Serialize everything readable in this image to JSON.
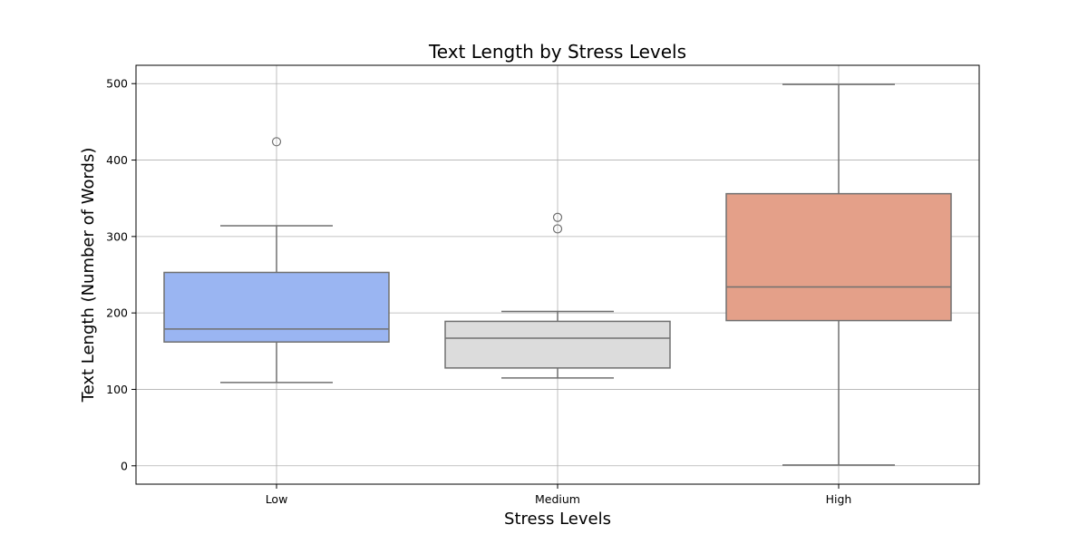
{
  "chart_data": {
    "type": "box",
    "title": "Text Length by Stress Levels",
    "xlabel": "Stress Levels",
    "ylabel": "Text Length (Number of Words)",
    "ylim": [
      -24,
      524
    ],
    "yticks": [
      0,
      100,
      200,
      300,
      400,
      500
    ],
    "grid": true,
    "categories": [
      "Low",
      "Medium",
      "High"
    ],
    "boxes": [
      {
        "category": "Low",
        "whisker_low": 109,
        "q1": 162,
        "median": 179,
        "q3": 253,
        "whisker_high": 314,
        "outliers": [
          424
        ],
        "color": "#9ab5f2"
      },
      {
        "category": "Medium",
        "whisker_low": 115,
        "q1": 128,
        "median": 167,
        "q3": 189,
        "whisker_high": 202,
        "outliers": [
          310,
          325
        ],
        "color": "#dcdcdc"
      },
      {
        "category": "High",
        "whisker_low": 1,
        "q1": 190,
        "median": 234,
        "q3": 356,
        "whisker_high": 499,
        "outliers": [],
        "color": "#e4a089"
      }
    ]
  }
}
